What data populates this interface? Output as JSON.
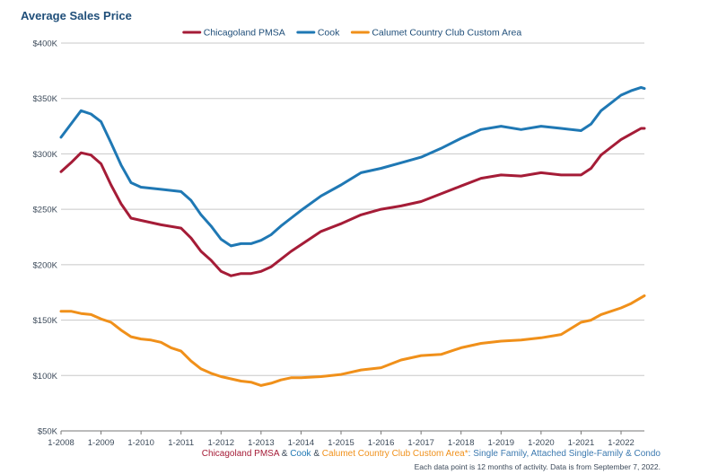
{
  "chart_data": {
    "type": "line",
    "title": "Average Sales Price",
    "ylim": [
      50000,
      400000
    ],
    "xlim": [
      2008.0,
      2022.583
    ],
    "y_ticks": [
      {
        "value": 400000,
        "label": "$400K"
      },
      {
        "value": 350000,
        "label": "$350K"
      },
      {
        "value": 300000,
        "label": "$300K"
      },
      {
        "value": 250000,
        "label": "$250K"
      },
      {
        "value": 200000,
        "label": "$200K"
      },
      {
        "value": 150000,
        "label": "$150K"
      },
      {
        "value": 100000,
        "label": "$100K"
      },
      {
        "value": 50000,
        "label": "$50K"
      }
    ],
    "x_ticks": [
      {
        "value": 2008,
        "label": "1-2008"
      },
      {
        "value": 2009,
        "label": "1-2009"
      },
      {
        "value": 2010,
        "label": "1-2010"
      },
      {
        "value": 2011,
        "label": "1-2011"
      },
      {
        "value": 2012,
        "label": "1-2012"
      },
      {
        "value": 2013,
        "label": "1-2013"
      },
      {
        "value": 2014,
        "label": "1-2014"
      },
      {
        "value": 2015,
        "label": "1-2015"
      },
      {
        "value": 2016,
        "label": "1-2016"
      },
      {
        "value": 2017,
        "label": "1-2017"
      },
      {
        "value": 2018,
        "label": "1-2018"
      },
      {
        "value": 2019,
        "label": "1-2019"
      },
      {
        "value": 2020,
        "label": "1-2020"
      },
      {
        "value": 2021,
        "label": "1-2021"
      },
      {
        "value": 2022,
        "label": "1-2022"
      }
    ],
    "legend_position": "top-center",
    "grid": "horizontal",
    "series": [
      {
        "name": "Chicagoland PMSA",
        "color": "#a51c37",
        "points": [
          [
            2008.0,
            284000
          ],
          [
            2008.25,
            292000
          ],
          [
            2008.5,
            301000
          ],
          [
            2008.75,
            299000
          ],
          [
            2009.0,
            291000
          ],
          [
            2009.25,
            272000
          ],
          [
            2009.5,
            255000
          ],
          [
            2009.75,
            242000
          ],
          [
            2010.0,
            240000
          ],
          [
            2010.5,
            236000
          ],
          [
            2011.0,
            233000
          ],
          [
            2011.25,
            224000
          ],
          [
            2011.5,
            212000
          ],
          [
            2011.75,
            204000
          ],
          [
            2012.0,
            194000
          ],
          [
            2012.25,
            190000
          ],
          [
            2012.5,
            192000
          ],
          [
            2012.75,
            192000
          ],
          [
            2013.0,
            194000
          ],
          [
            2013.25,
            198000
          ],
          [
            2013.5,
            205000
          ],
          [
            2013.75,
            212000
          ],
          [
            2014.0,
            218000
          ],
          [
            2014.5,
            230000
          ],
          [
            2015.0,
            237000
          ],
          [
            2015.5,
            245000
          ],
          [
            2016.0,
            250000
          ],
          [
            2016.5,
            253000
          ],
          [
            2017.0,
            257000
          ],
          [
            2017.5,
            264000
          ],
          [
            2018.0,
            271000
          ],
          [
            2018.5,
            278000
          ],
          [
            2019.0,
            281000
          ],
          [
            2019.5,
            280000
          ],
          [
            2020.0,
            283000
          ],
          [
            2020.5,
            281000
          ],
          [
            2021.0,
            281000
          ],
          [
            2021.25,
            287000
          ],
          [
            2021.5,
            299000
          ],
          [
            2021.75,
            306000
          ],
          [
            2022.0,
            313000
          ],
          [
            2022.25,
            318000
          ],
          [
            2022.5,
            323000
          ],
          [
            2022.583,
            323000
          ]
        ]
      },
      {
        "name": "Cook",
        "color": "#1f78b4",
        "points": [
          [
            2008.0,
            315000
          ],
          [
            2008.25,
            327000
          ],
          [
            2008.5,
            339000
          ],
          [
            2008.75,
            336000
          ],
          [
            2009.0,
            329000
          ],
          [
            2009.25,
            310000
          ],
          [
            2009.5,
            290000
          ],
          [
            2009.75,
            274000
          ],
          [
            2010.0,
            270000
          ],
          [
            2010.5,
            268000
          ],
          [
            2011.0,
            266000
          ],
          [
            2011.25,
            258000
          ],
          [
            2011.5,
            245000
          ],
          [
            2011.75,
            235000
          ],
          [
            2012.0,
            223000
          ],
          [
            2012.25,
            217000
          ],
          [
            2012.5,
            219000
          ],
          [
            2012.75,
            219000
          ],
          [
            2013.0,
            222000
          ],
          [
            2013.25,
            227000
          ],
          [
            2013.5,
            235000
          ],
          [
            2013.75,
            242000
          ],
          [
            2014.0,
            249000
          ],
          [
            2014.5,
            262000
          ],
          [
            2015.0,
            272000
          ],
          [
            2015.5,
            283000
          ],
          [
            2016.0,
            287000
          ],
          [
            2016.5,
            292000
          ],
          [
            2017.0,
            297000
          ],
          [
            2017.5,
            305000
          ],
          [
            2018.0,
            314000
          ],
          [
            2018.5,
            322000
          ],
          [
            2019.0,
            325000
          ],
          [
            2019.5,
            322000
          ],
          [
            2020.0,
            325000
          ],
          [
            2020.5,
            323000
          ],
          [
            2021.0,
            321000
          ],
          [
            2021.25,
            327000
          ],
          [
            2021.5,
            339000
          ],
          [
            2021.75,
            346000
          ],
          [
            2022.0,
            353000
          ],
          [
            2022.25,
            357000
          ],
          [
            2022.5,
            360000
          ],
          [
            2022.583,
            359000
          ]
        ]
      },
      {
        "name": "Calumet Country Club Custom Area",
        "color": "#f0901a",
        "points": [
          [
            2008.0,
            158000
          ],
          [
            2008.25,
            158000
          ],
          [
            2008.5,
            156000
          ],
          [
            2008.75,
            155000
          ],
          [
            2009.0,
            151000
          ],
          [
            2009.25,
            148000
          ],
          [
            2009.5,
            141000
          ],
          [
            2009.75,
            135000
          ],
          [
            2010.0,
            133000
          ],
          [
            2010.25,
            132000
          ],
          [
            2010.5,
            130000
          ],
          [
            2010.75,
            125000
          ],
          [
            2011.0,
            122000
          ],
          [
            2011.25,
            113000
          ],
          [
            2011.5,
            106000
          ],
          [
            2011.75,
            102000
          ],
          [
            2012.0,
            99000
          ],
          [
            2012.25,
            97000
          ],
          [
            2012.5,
            95000
          ],
          [
            2012.75,
            94000
          ],
          [
            2013.0,
            91000
          ],
          [
            2013.25,
            93000
          ],
          [
            2013.5,
            96000
          ],
          [
            2013.75,
            98000
          ],
          [
            2014.0,
            98000
          ],
          [
            2014.5,
            99000
          ],
          [
            2015.0,
            101000
          ],
          [
            2015.5,
            105000
          ],
          [
            2016.0,
            107000
          ],
          [
            2016.5,
            114000
          ],
          [
            2017.0,
            118000
          ],
          [
            2017.5,
            119000
          ],
          [
            2018.0,
            125000
          ],
          [
            2018.5,
            129000
          ],
          [
            2019.0,
            131000
          ],
          [
            2019.5,
            132000
          ],
          [
            2020.0,
            134000
          ],
          [
            2020.5,
            137000
          ],
          [
            2021.0,
            148000
          ],
          [
            2021.25,
            150000
          ],
          [
            2021.5,
            155000
          ],
          [
            2022.0,
            161000
          ],
          [
            2022.25,
            165000
          ],
          [
            2022.583,
            172000
          ]
        ]
      }
    ]
  },
  "footer": {
    "line1_parts": [
      {
        "text": "Chicagoland PMSA",
        "color": "#a51c37"
      },
      {
        "text": " & ",
        "color": "#3c4a5a"
      },
      {
        "text": "Cook",
        "color": "#1f78b4"
      },
      {
        "text": " & ",
        "color": "#3c4a5a"
      },
      {
        "text": "Calumet Country Club Custom Area*",
        "color": "#f0901a"
      },
      {
        "text": ": Single Family, Attached Single-Family & Condo",
        "color": "#3c7ab0"
      }
    ],
    "note": "Each data point is 12 months of activity. Data is from September 7, 2022."
  }
}
